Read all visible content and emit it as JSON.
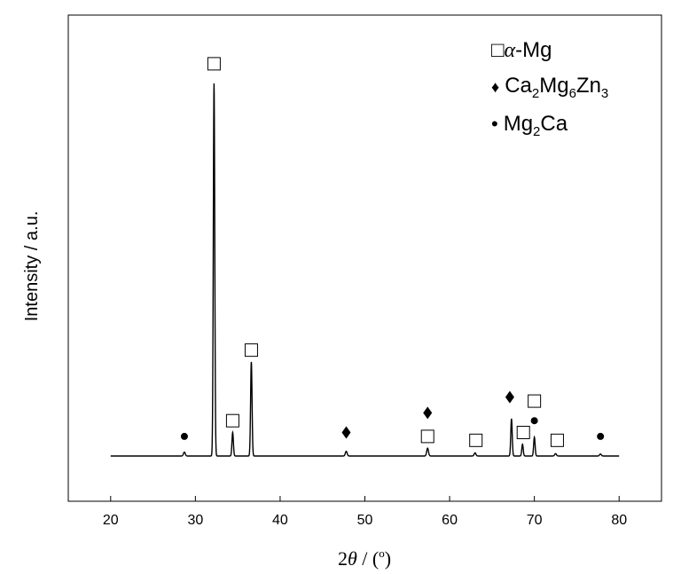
{
  "chart_data": {
    "type": "line",
    "xlabel_prefix": "2",
    "xlabel_theta": "θ",
    "xlabel_suffix": " / (",
    "xlabel_degree": "o",
    "xlabel_close": ")",
    "ylabel": "Intensity / a.u.",
    "xlim": [
      15,
      85
    ],
    "xticks": [
      20,
      30,
      40,
      50,
      60,
      70,
      80
    ],
    "ylim": [
      0,
      1
    ],
    "grid": false,
    "legend_position": "top-right",
    "legend": [
      {
        "symbol": "square",
        "glyph": "□",
        "prefix": "α",
        "text": "-Mg"
      },
      {
        "symbol": "diamond",
        "glyph": "♦",
        "parts": [
          "Ca",
          "2",
          "Mg",
          "6",
          "Zn",
          "3"
        ]
      },
      {
        "symbol": "circle",
        "glyph": "•",
        "parts": [
          "Mg",
          "2",
          "Ca"
        ]
      }
    ],
    "series": [
      {
        "peaks": [
          {
            "x": 28.7,
            "y": 0.01,
            "w": 0.15
          },
          {
            "x": 32.2,
            "y": 0.95,
            "w": 0.12
          },
          {
            "x": 34.4,
            "y": 0.06,
            "w": 0.12
          },
          {
            "x": 36.6,
            "y": 0.24,
            "w": 0.12
          },
          {
            "x": 47.8,
            "y": 0.012,
            "w": 0.15
          },
          {
            "x": 57.4,
            "y": 0.02,
            "w": 0.15
          },
          {
            "x": 63.0,
            "y": 0.008,
            "w": 0.15
          },
          {
            "x": 67.3,
            "y": 0.095,
            "w": 0.12
          },
          {
            "x": 68.6,
            "y": 0.03,
            "w": 0.12
          },
          {
            "x": 70.0,
            "y": 0.048,
            "w": 0.12
          },
          {
            "x": 72.5,
            "y": 0.006,
            "w": 0.15
          },
          {
            "x": 77.8,
            "y": 0.005,
            "w": 0.15
          }
        ],
        "x_range": [
          20,
          80
        ]
      }
    ],
    "annotations": [
      {
        "x": 28.7,
        "y": 0.05,
        "marker": "circle"
      },
      {
        "x": 32.2,
        "y": 1.0,
        "marker": "square"
      },
      {
        "x": 34.4,
        "y": 0.09,
        "marker": "square"
      },
      {
        "x": 36.6,
        "y": 0.27,
        "marker": "square"
      },
      {
        "x": 47.8,
        "y": 0.06,
        "marker": "diamond"
      },
      {
        "x": 57.4,
        "y": 0.11,
        "marker": "diamond"
      },
      {
        "x": 57.4,
        "y": 0.05,
        "marker": "square"
      },
      {
        "x": 63.1,
        "y": 0.04,
        "marker": "square"
      },
      {
        "x": 67.1,
        "y": 0.15,
        "marker": "diamond"
      },
      {
        "x": 68.7,
        "y": 0.06,
        "marker": "square"
      },
      {
        "x": 70.0,
        "y": 0.09,
        "marker": "circle"
      },
      {
        "x": 70.0,
        "y": 0.14,
        "marker": "square"
      },
      {
        "x": 72.7,
        "y": 0.04,
        "marker": "square"
      },
      {
        "x": 77.8,
        "y": 0.05,
        "marker": "circle"
      }
    ]
  }
}
